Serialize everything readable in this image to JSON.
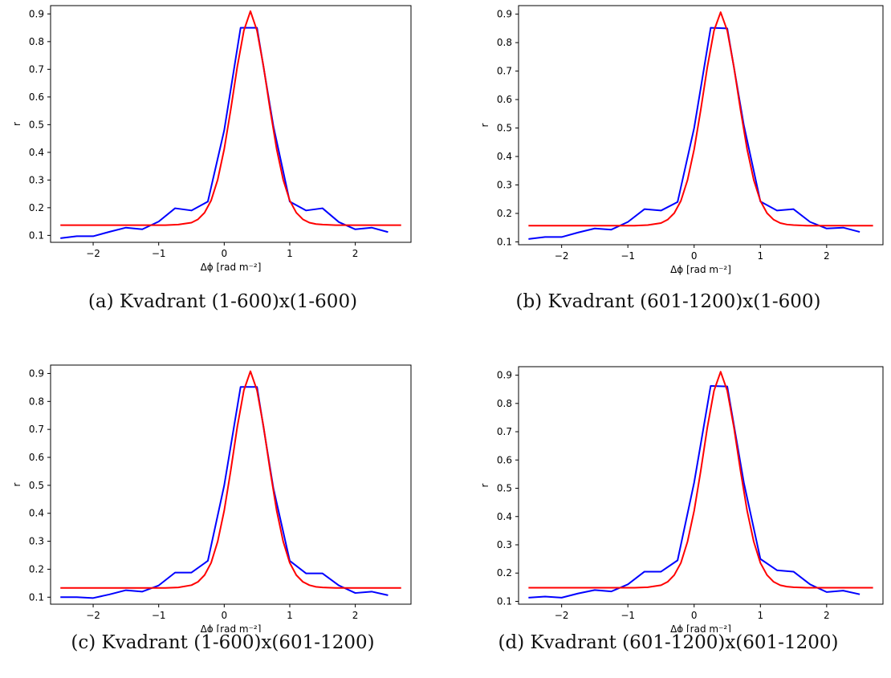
{
  "chart_data": [
    {
      "type": "line",
      "caption": "(a) Kvadrant (1-600)x(1-600)",
      "xlabel": "Δϕ [rad m⁻²]",
      "ylabel": "r",
      "xlim": [
        -2.65,
        2.85
      ],
      "ylim": [
        0.075,
        0.93
      ],
      "xticks": [
        -2,
        -1,
        0,
        1,
        2
      ],
      "yticks": [
        0.1,
        0.2,
        0.3,
        0.4,
        0.5,
        0.6,
        0.7,
        0.8,
        0.9
      ],
      "grid": false,
      "series": [
        {
          "color": "#0000ff",
          "x": [
            -2.5,
            -2.25,
            -2.0,
            -1.75,
            -1.5,
            -1.25,
            -1.0,
            -0.75,
            -0.5,
            -0.25,
            0.0,
            0.25,
            0.5,
            0.75,
            1.0,
            1.25,
            1.5,
            1.75,
            2.0,
            2.25,
            2.5
          ],
          "y": [
            0.09,
            0.097,
            0.097,
            0.113,
            0.128,
            0.122,
            0.15,
            0.198,
            0.19,
            0.222,
            0.48,
            0.85,
            0.85,
            0.495,
            0.222,
            0.19,
            0.198,
            0.148,
            0.122,
            0.128,
            0.112
          ]
        },
        {
          "color": "#ff0000",
          "x": [
            -2.5,
            -2.3,
            -2.1,
            -1.9,
            -1.7,
            -1.5,
            -1.3,
            -1.1,
            -0.9,
            -0.7,
            -0.5,
            -0.4,
            -0.3,
            -0.2,
            -0.1,
            0.0,
            0.1,
            0.2,
            0.3,
            0.4,
            0.5,
            0.6,
            0.7,
            0.8,
            0.9,
            1.0,
            1.1,
            1.2,
            1.3,
            1.4,
            1.5,
            1.7,
            1.9,
            2.1,
            2.3,
            2.5,
            2.7
          ],
          "y": [
            0.137,
            0.137,
            0.137,
            0.137,
            0.137,
            0.137,
            0.137,
            0.137,
            0.137,
            0.139,
            0.146,
            0.158,
            0.182,
            0.226,
            0.301,
            0.412,
            0.555,
            0.71,
            0.84,
            0.91,
            0.84,
            0.71,
            0.555,
            0.412,
            0.301,
            0.226,
            0.182,
            0.158,
            0.146,
            0.141,
            0.139,
            0.137,
            0.137,
            0.137,
            0.137,
            0.137,
            0.137
          ]
        }
      ]
    },
    {
      "type": "line",
      "caption": "(b) Kvadrant (601-1200)x(1-600)",
      "xlabel": "Δϕ [rad m⁻²]",
      "ylabel": "r",
      "xlim": [
        -2.65,
        2.85
      ],
      "ylim": [
        0.09,
        0.93
      ],
      "xticks": [
        -2,
        -1,
        0,
        1,
        2
      ],
      "yticks": [
        0.1,
        0.2,
        0.3,
        0.4,
        0.5,
        0.6,
        0.7,
        0.8,
        0.9
      ],
      "grid": false,
      "series": [
        {
          "color": "#0000ff",
          "x": [
            -2.5,
            -2.25,
            -2.0,
            -1.75,
            -1.5,
            -1.25,
            -1.0,
            -0.75,
            -0.5,
            -0.25,
            0.0,
            0.25,
            0.5,
            0.75,
            1.0,
            1.25,
            1.5,
            1.75,
            2.0,
            2.25,
            2.5
          ],
          "y": [
            0.11,
            0.117,
            0.117,
            0.133,
            0.147,
            0.143,
            0.17,
            0.215,
            0.21,
            0.24,
            0.5,
            0.852,
            0.85,
            0.51,
            0.242,
            0.21,
            0.215,
            0.17,
            0.147,
            0.15,
            0.135
          ]
        },
        {
          "color": "#ff0000",
          "x": [
            -2.5,
            -2.3,
            -2.1,
            -1.9,
            -1.7,
            -1.5,
            -1.3,
            -1.1,
            -0.9,
            -0.7,
            -0.5,
            -0.4,
            -0.3,
            -0.2,
            -0.1,
            0.0,
            0.1,
            0.2,
            0.3,
            0.4,
            0.5,
            0.6,
            0.7,
            0.8,
            0.9,
            1.0,
            1.1,
            1.2,
            1.3,
            1.4,
            1.5,
            1.7,
            1.9,
            2.1,
            2.3,
            2.5,
            2.7
          ],
          "y": [
            0.157,
            0.157,
            0.157,
            0.157,
            0.157,
            0.157,
            0.157,
            0.157,
            0.157,
            0.159,
            0.166,
            0.178,
            0.201,
            0.244,
            0.317,
            0.425,
            0.564,
            0.715,
            0.842,
            0.907,
            0.842,
            0.715,
            0.564,
            0.425,
            0.317,
            0.244,
            0.201,
            0.178,
            0.166,
            0.161,
            0.159,
            0.157,
            0.157,
            0.157,
            0.157,
            0.157,
            0.157
          ]
        }
      ]
    },
    {
      "type": "line",
      "caption": "(c) Kvadrant (1-600)x(601-1200)",
      "xlabel": "Δϕ [rad m⁻²]",
      "ylabel": "r",
      "xlim": [
        -2.65,
        2.85
      ],
      "ylim": [
        0.075,
        0.93
      ],
      "xticks": [
        -2,
        -1,
        0,
        1,
        2
      ],
      "yticks": [
        0.1,
        0.2,
        0.3,
        0.4,
        0.5,
        0.6,
        0.7,
        0.8,
        0.9
      ],
      "grid": false,
      "series": [
        {
          "color": "#0000ff",
          "x": [
            -2.5,
            -2.25,
            -2.0,
            -1.75,
            -1.5,
            -1.25,
            -1.0,
            -0.75,
            -0.5,
            -0.25,
            0.0,
            0.25,
            0.5,
            0.75,
            1.0,
            1.25,
            1.5,
            1.75,
            2.0,
            2.25,
            2.5
          ],
          "y": [
            0.1,
            0.1,
            0.097,
            0.11,
            0.125,
            0.12,
            0.142,
            0.188,
            0.188,
            0.23,
            0.5,
            0.852,
            0.852,
            0.49,
            0.23,
            0.185,
            0.185,
            0.142,
            0.115,
            0.12,
            0.107
          ]
        },
        {
          "color": "#ff0000",
          "x": [
            -2.5,
            -2.3,
            -2.1,
            -1.9,
            -1.7,
            -1.5,
            -1.3,
            -1.1,
            -0.9,
            -0.7,
            -0.5,
            -0.4,
            -0.3,
            -0.2,
            -0.1,
            0.0,
            0.1,
            0.2,
            0.3,
            0.4,
            0.5,
            0.6,
            0.7,
            0.8,
            0.9,
            1.0,
            1.1,
            1.2,
            1.3,
            1.4,
            1.5,
            1.7,
            1.9,
            2.1,
            2.3,
            2.5,
            2.7
          ],
          "y": [
            0.133,
            0.133,
            0.133,
            0.133,
            0.133,
            0.133,
            0.133,
            0.133,
            0.133,
            0.135,
            0.143,
            0.155,
            0.179,
            0.223,
            0.299,
            0.41,
            0.554,
            0.71,
            0.84,
            0.908,
            0.84,
            0.71,
            0.554,
            0.41,
            0.299,
            0.223,
            0.179,
            0.155,
            0.143,
            0.137,
            0.135,
            0.133,
            0.133,
            0.133,
            0.133,
            0.133,
            0.133
          ]
        }
      ]
    },
    {
      "type": "line",
      "caption": "(d) Kvadrant (601-1200)x(601-1200)",
      "xlabel": "Δϕ [rad m⁻²]",
      "ylabel": "r",
      "xlim": [
        -2.65,
        2.85
      ],
      "ylim": [
        0.09,
        0.93
      ],
      "xticks": [
        -2,
        -1,
        0,
        1,
        2
      ],
      "yticks": [
        0.1,
        0.2,
        0.3,
        0.4,
        0.5,
        0.6,
        0.7,
        0.8,
        0.9
      ],
      "grid": false,
      "series": [
        {
          "color": "#0000ff",
          "x": [
            -2.5,
            -2.25,
            -2.0,
            -1.75,
            -1.5,
            -1.25,
            -1.0,
            -0.75,
            -0.5,
            -0.25,
            0.0,
            0.25,
            0.5,
            0.75,
            1.0,
            1.25,
            1.5,
            1.75,
            2.0,
            2.25,
            2.5
          ],
          "y": [
            0.113,
            0.117,
            0.113,
            0.128,
            0.14,
            0.135,
            0.16,
            0.205,
            0.205,
            0.245,
            0.52,
            0.862,
            0.86,
            0.52,
            0.25,
            0.21,
            0.205,
            0.16,
            0.133,
            0.138,
            0.125
          ]
        },
        {
          "color": "#ff0000",
          "x": [
            -2.5,
            -2.3,
            -2.1,
            -1.9,
            -1.7,
            -1.5,
            -1.3,
            -1.1,
            -0.9,
            -0.7,
            -0.5,
            -0.4,
            -0.3,
            -0.2,
            -0.1,
            0.0,
            0.1,
            0.2,
            0.3,
            0.4,
            0.5,
            0.6,
            0.7,
            0.8,
            0.9,
            1.0,
            1.1,
            1.2,
            1.3,
            1.4,
            1.5,
            1.7,
            1.9,
            2.1,
            2.3,
            2.5,
            2.7
          ],
          "y": [
            0.148,
            0.148,
            0.148,
            0.148,
            0.148,
            0.148,
            0.148,
            0.148,
            0.148,
            0.15,
            0.157,
            0.169,
            0.193,
            0.236,
            0.311,
            0.42,
            0.562,
            0.716,
            0.845,
            0.912,
            0.845,
            0.716,
            0.562,
            0.42,
            0.311,
            0.236,
            0.193,
            0.169,
            0.157,
            0.152,
            0.15,
            0.148,
            0.148,
            0.148,
            0.148,
            0.148,
            0.148
          ]
        }
      ]
    }
  ]
}
